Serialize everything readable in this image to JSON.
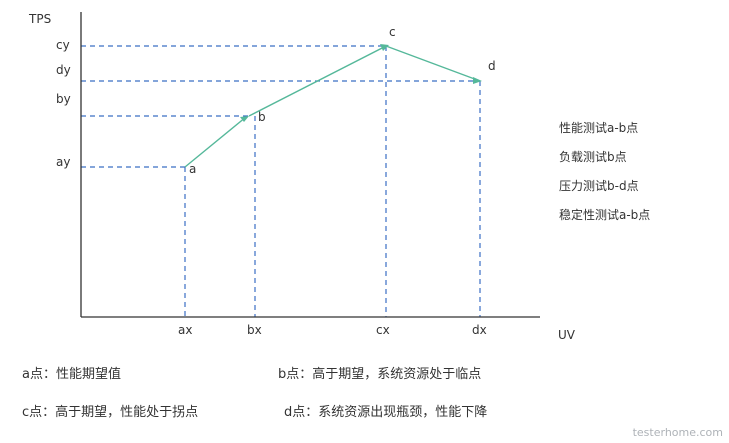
{
  "axes": {
    "y_label": "TPS",
    "x_label": "UV"
  },
  "points": [
    {
      "id": "a",
      "label": "a",
      "x_tick": "ax",
      "y_tick": "ay"
    },
    {
      "id": "b",
      "label": "b",
      "x_tick": "bx",
      "y_tick": "by"
    },
    {
      "id": "c",
      "label": "c",
      "x_tick": "cx",
      "y_tick": "cy"
    },
    {
      "id": "d",
      "label": "d",
      "x_tick": "dx",
      "y_tick": "dy"
    }
  ],
  "side_notes": [
    "性能测试a-b点",
    "负载测试b点",
    "压力测试b-d点",
    "稳定性测试a-b点"
  ],
  "captions": {
    "a": "a点：性能期望值",
    "b": "b点：高于期望，系统资源处于临点",
    "c": "c点：高于期望，性能处于拐点",
    "d": "d点：系统资源出现瓶颈，性能下降"
  },
  "watermark": "testerhome.com",
  "colors": {
    "axis": "#333333",
    "guide": "#3b6fc4",
    "curve": "#55b89a"
  }
}
